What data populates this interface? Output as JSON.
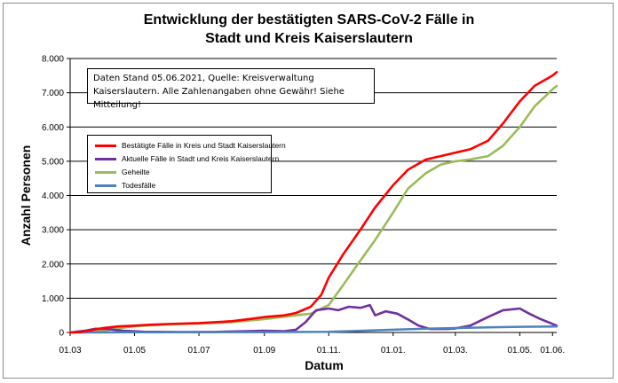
{
  "chart_data": {
    "type": "line",
    "title": "Entwicklung der bestätigten SARS-CoV-2 Fälle in",
    "subtitle": "Stadt und Kreis Kaiserslautern",
    "xlabel": "Datum",
    "ylabel": "Anzahl Personen",
    "note": [
      "Daten Stand 05.06.2021, Quelle: Kreisverwaltung",
      "Kaiserslautern. Alle Zahlenangaben ohne Gewähr! Siehe Mitteilung!"
    ],
    "ylim": [
      0,
      8000
    ],
    "yticks": [
      0,
      1000,
      2000,
      3000,
      4000,
      5000,
      6000,
      7000,
      8000
    ],
    "ytick_labels": [
      "0",
      "1.000",
      "2.000",
      "3.000",
      "4.000",
      "5.000",
      "6.000",
      "7.000",
      "8.000"
    ],
    "xlim": [
      "2020-03-01",
      "2021-06-05"
    ],
    "xticks": [
      {
        "date": "2020-03-01",
        "label": "01.03"
      },
      {
        "date": "2020-05-01",
        "label": "01.05"
      },
      {
        "date": "2020-07-01",
        "label": "01.07"
      },
      {
        "date": "2020-09-01",
        "label": "01.09"
      },
      {
        "date": "2020-11-01",
        "label": "01.11."
      },
      {
        "date": "2021-01-01",
        "label": "01.01."
      },
      {
        "date": "2021-03-01",
        "label": "01.03."
      },
      {
        "date": "2021-05-01",
        "label": "01.05."
      },
      {
        "date": "2021-06-01",
        "label": "01.06."
      }
    ],
    "grid": "horizontal",
    "legend_position": "upper-left",
    "series": [
      {
        "name": "Bestätigte Fälle in Kreis und Stadt Kaiserslautern",
        "color": "#ff0000",
        "points": [
          [
            "2020-03-01",
            0
          ],
          [
            "2020-03-10",
            10
          ],
          [
            "2020-03-20",
            60
          ],
          [
            "2020-04-01",
            130
          ],
          [
            "2020-04-15",
            175
          ],
          [
            "2020-05-01",
            200
          ],
          [
            "2020-05-15",
            225
          ],
          [
            "2020-06-01",
            245
          ],
          [
            "2020-07-01",
            275
          ],
          [
            "2020-08-01",
            330
          ],
          [
            "2020-08-20",
            400
          ],
          [
            "2020-09-01",
            450
          ],
          [
            "2020-09-20",
            500
          ],
          [
            "2020-10-01",
            570
          ],
          [
            "2020-10-15",
            750
          ],
          [
            "2020-10-25",
            1100
          ],
          [
            "2020-11-01",
            1600
          ],
          [
            "2020-11-15",
            2300
          ],
          [
            "2020-12-01",
            3000
          ],
          [
            "2020-12-15",
            3650
          ],
          [
            "2021-01-01",
            4300
          ],
          [
            "2021-01-15",
            4750
          ],
          [
            "2021-02-01",
            5050
          ],
          [
            "2021-02-15",
            5150
          ],
          [
            "2021-03-01",
            5250
          ],
          [
            "2021-03-15",
            5350
          ],
          [
            "2021-04-01",
            5600
          ],
          [
            "2021-04-15",
            6100
          ],
          [
            "2021-05-01",
            6750
          ],
          [
            "2021-05-15",
            7200
          ],
          [
            "2021-06-01",
            7500
          ],
          [
            "2021-06-05",
            7600
          ]
        ]
      },
      {
        "name": "Aktuelle Fälle in Stadt und Kreis Kaiserslautern",
        "color": "#7030a0",
        "points": [
          [
            "2020-03-01",
            0
          ],
          [
            "2020-03-15",
            50
          ],
          [
            "2020-03-25",
            110
          ],
          [
            "2020-04-05",
            100
          ],
          [
            "2020-04-20",
            50
          ],
          [
            "2020-05-10",
            20
          ],
          [
            "2020-06-15",
            10
          ],
          [
            "2020-07-15",
            15
          ],
          [
            "2020-08-15",
            40
          ],
          [
            "2020-09-01",
            50
          ],
          [
            "2020-09-20",
            40
          ],
          [
            "2020-10-01",
            80
          ],
          [
            "2020-10-10",
            300
          ],
          [
            "2020-10-20",
            650
          ],
          [
            "2020-11-01",
            700
          ],
          [
            "2020-11-10",
            650
          ],
          [
            "2020-11-20",
            750
          ],
          [
            "2020-12-01",
            720
          ],
          [
            "2020-12-10",
            800
          ],
          [
            "2020-12-15",
            500
          ],
          [
            "2020-12-25",
            620
          ],
          [
            "2021-01-05",
            550
          ],
          [
            "2021-01-15",
            380
          ],
          [
            "2021-01-25",
            200
          ],
          [
            "2021-02-05",
            100
          ],
          [
            "2021-02-20",
            100
          ],
          [
            "2021-03-01",
            120
          ],
          [
            "2021-03-15",
            200
          ],
          [
            "2021-04-01",
            450
          ],
          [
            "2021-04-15",
            650
          ],
          [
            "2021-05-01",
            700
          ],
          [
            "2021-05-10",
            550
          ],
          [
            "2021-05-20",
            400
          ],
          [
            "2021-06-05",
            200
          ]
        ]
      },
      {
        "name": "Geheilte",
        "color": "#9bbb59",
        "points": [
          [
            "2020-03-01",
            0
          ],
          [
            "2020-03-20",
            20
          ],
          [
            "2020-04-01",
            50
          ],
          [
            "2020-04-15",
            120
          ],
          [
            "2020-05-01",
            180
          ],
          [
            "2020-06-01",
            235
          ],
          [
            "2020-07-01",
            260
          ],
          [
            "2020-08-01",
            300
          ],
          [
            "2020-09-01",
            390
          ],
          [
            "2020-10-01",
            500
          ],
          [
            "2020-10-15",
            550
          ],
          [
            "2020-11-01",
            800
          ],
          [
            "2020-11-15",
            1400
          ],
          [
            "2020-12-01",
            2100
          ],
          [
            "2020-12-15",
            2700
          ],
          [
            "2021-01-01",
            3500
          ],
          [
            "2021-01-15",
            4200
          ],
          [
            "2021-02-01",
            4650
          ],
          [
            "2021-02-15",
            4900
          ],
          [
            "2021-03-01",
            5000
          ],
          [
            "2021-03-15",
            5050
          ],
          [
            "2021-04-01",
            5150
          ],
          [
            "2021-04-15",
            5450
          ],
          [
            "2021-05-01",
            6000
          ],
          [
            "2021-05-15",
            6600
          ],
          [
            "2021-06-01",
            7100
          ],
          [
            "2021-06-05",
            7200
          ]
        ]
      },
      {
        "name": "Todesfälle",
        "color": "#4f81bd",
        "points": [
          [
            "2020-03-01",
            0
          ],
          [
            "2020-05-01",
            5
          ],
          [
            "2020-09-01",
            10
          ],
          [
            "2020-11-01",
            20
          ],
          [
            "2020-12-01",
            50
          ],
          [
            "2021-01-01",
            80
          ],
          [
            "2021-02-01",
            110
          ],
          [
            "2021-03-01",
            130
          ],
          [
            "2021-04-01",
            150
          ],
          [
            "2021-05-01",
            165
          ],
          [
            "2021-06-05",
            175
          ]
        ]
      }
    ]
  }
}
